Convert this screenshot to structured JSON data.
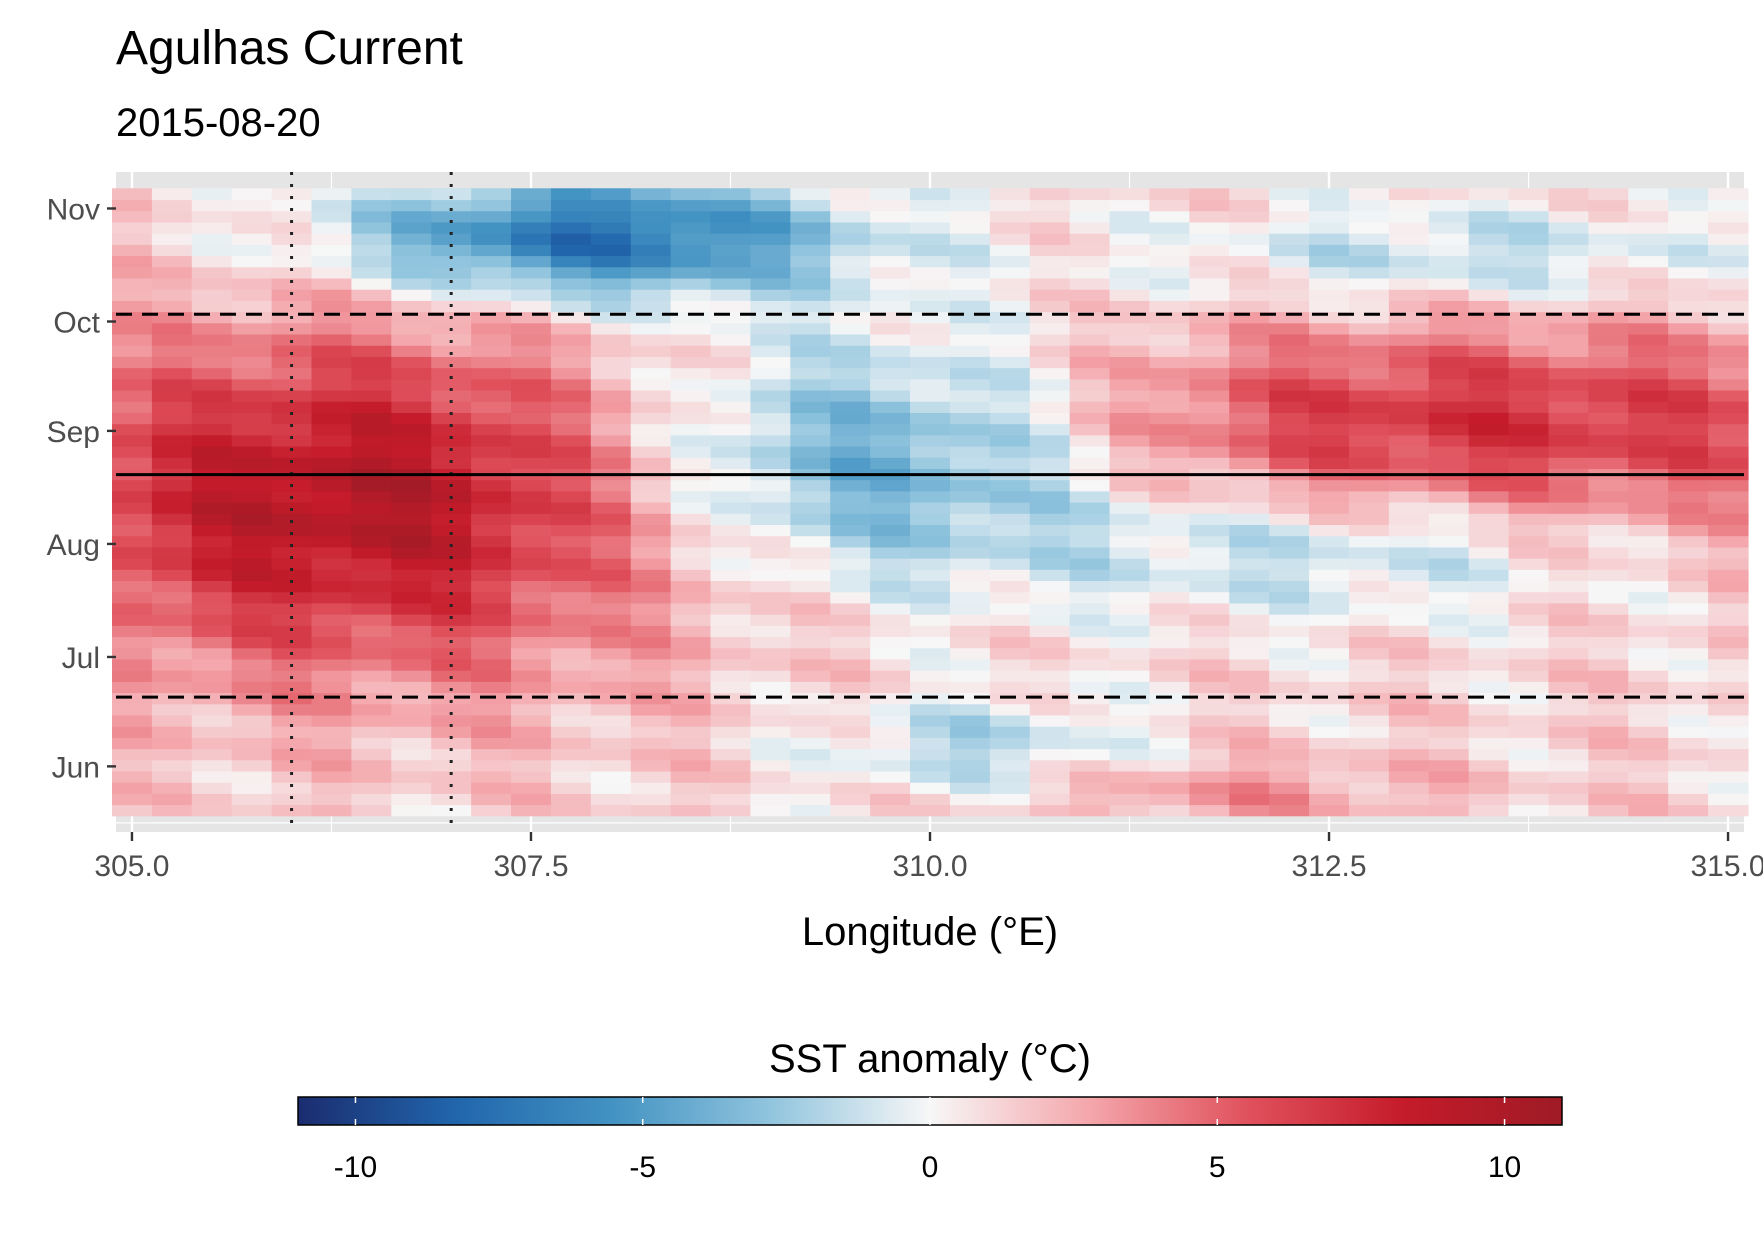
{
  "chart_data": {
    "type": "heatmap",
    "title": "Agulhas Current",
    "subtitle": "2015-08-20",
    "xlabel": "Longitude (°E)",
    "ylabel": "",
    "xlim": [
      304.9,
      315.1
    ],
    "x_ticks": [
      305.0,
      307.5,
      310.0,
      312.5,
      315.0
    ],
    "x_tick_labels": [
      "305.0",
      "307.5",
      "310.0",
      "312.5",
      "315.0"
    ],
    "y_axis": "time",
    "y_range": [
      "2015-05-20",
      "2015-11-05"
    ],
    "y_ticks": [
      "2015-06-01",
      "2015-07-01",
      "2015-08-01",
      "2015-09-01",
      "2015-10-01",
      "2015-11-01"
    ],
    "y_tick_labels": [
      "Jun",
      "Jul",
      "Aug",
      "Sep",
      "Oct",
      "Nov"
    ],
    "grid": true,
    "panel_background": "#e5e5e5",
    "grid_color": "#ffffff",
    "reference_lines": {
      "solid_date": "2015-08-20",
      "dashed_dates": [
        "2015-06-20",
        "2015-10-03"
      ],
      "dotted_longitudes": [
        306.0,
        307.0
      ]
    },
    "legend": {
      "title": "SST anomaly (°C)",
      "position": "bottom",
      "limits": [
        -11,
        11
      ],
      "breaks": [
        -10,
        -5,
        0,
        5,
        10
      ],
      "break_labels": [
        "-10",
        "-5",
        "0",
        "5",
        "10"
      ],
      "palette": [
        "#1b2c6f",
        "#2166ac",
        "#4393c3",
        "#92c5de",
        "#f7f7f7",
        "#f4a7ac",
        "#e0525d",
        "#c51b2a",
        "#9e1b25"
      ]
    },
    "grid_cells": {
      "lon_start": 305.0,
      "lon_step": 0.25,
      "lon_count": 41,
      "date_start": "2015-05-20",
      "date_end": "2015-11-05",
      "n_times": 56,
      "description_of_values": "anomaly field sampled in script"
    }
  }
}
